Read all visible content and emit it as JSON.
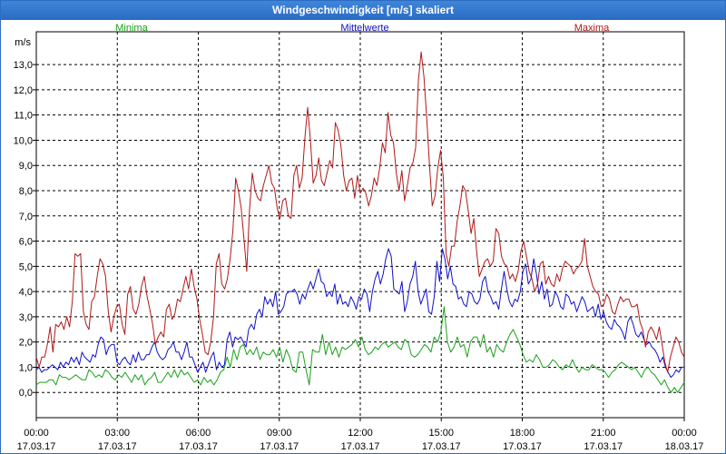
{
  "window": {
    "title": "Windgeschwindigkeit [m/s] skaliert"
  },
  "chart_data": {
    "type": "line",
    "title": "Windgeschwindigkeit [m/s] skaliert",
    "ylabel": "m/s",
    "xlabel": "",
    "ylim": [
      -1,
      14.3
    ],
    "xlim": [
      0,
      24
    ],
    "grid": true,
    "x_ticks": [
      {
        "time": "00:00",
        "date": "17.03.17"
      },
      {
        "time": "03:00",
        "date": "17.03.17"
      },
      {
        "time": "06:00",
        "date": "17.03.17"
      },
      {
        "time": "09:00",
        "date": "17.03.17"
      },
      {
        "time": "12:00",
        "date": "17.03.17"
      },
      {
        "time": "15:00",
        "date": "17.03.17"
      },
      {
        "time": "18:00",
        "date": "17.03.17"
      },
      {
        "time": "21:00",
        "date": "17.03.17"
      },
      {
        "time": "00:00",
        "date": "18.03.17"
      }
    ],
    "y_ticks": [
      "0,0",
      "1,0",
      "2,0",
      "3,0",
      "4,0",
      "5,0",
      "6,0",
      "7,0",
      "8,0",
      "9,0",
      "10,0",
      "11,0",
      "12,0",
      "13,0"
    ],
    "series": [
      {
        "name": "Minima",
        "color": "#1aa01a",
        "values": [
          0.3,
          0.4,
          0.4,
          0.4,
          0.5,
          0.5,
          0.3,
          0.7,
          0.6,
          0.6,
          0.5,
          0.6,
          0.7,
          0.6,
          0.5,
          0.5,
          0.9,
          0.8,
          0.6,
          0.7,
          0.6,
          0.9,
          0.8,
          0.6,
          0.5,
          0.7,
          0.6,
          0.8,
          0.6,
          0.4,
          0.7,
          0.5,
          0.7,
          0.3,
          0.5,
          0.6,
          0.8,
          0.4,
          0.4,
          0.6,
          0.8,
          0.6,
          0.9,
          0.6,
          0.9,
          0.7,
          0.8,
          0.6,
          0.4,
          0.5,
          0.3,
          0.6,
          0.4,
          0.5,
          0.3,
          0.5,
          0.8,
          0.9,
          1.4,
          1.0,
          1.7,
          1.3,
          1.8,
          1.9,
          1.5,
          1.7,
          1.5,
          1.8,
          1.3,
          1.6,
          1.5,
          1.5,
          1.7,
          1.4,
          1.8,
          1.2,
          1.7,
          1.4,
          0.9,
          0.8,
          1.6,
          1.6,
          0.9,
          0.3,
          1.7,
          1.6,
          1.6,
          2.3,
          1.5,
          2.0,
          1.5,
          1.8,
          1.4,
          1.8,
          1.7,
          1.8,
          1.9,
          2.1,
          1.8,
          2.2,
          1.7,
          1.5,
          1.6,
          1.8,
          1.7,
          1.9,
          2.0,
          1.8,
          1.9,
          2.0,
          1.8,
          1.7,
          2.1,
          2.0,
          1.5,
          1.4,
          1.5,
          1.7,
          1.9,
          1.8,
          1.6,
          2.2,
          2.0,
          2.4,
          3.4,
          2.0,
          1.6,
          1.8,
          2.2,
          1.8,
          1.9,
          1.4,
          2.0,
          2.2,
          2.2,
          1.8,
          2.3,
          1.6,
          1.8,
          1.4,
          1.9,
          1.7,
          1.6,
          2.0,
          2.3,
          2.5,
          2.2,
          1.9,
          1.5,
          1.2,
          1.3,
          1.2,
          1.5,
          1.3,
          1.0,
          1.0,
          1.1,
          1.3,
          1.2,
          1.0,
          0.9,
          1.1,
          1.0,
          1.3,
          1.0,
          0.8,
          1.0,
          0.9,
          0.9,
          1.1,
          1.0,
          0.9,
          0.9,
          0.8,
          0.6,
          0.8,
          0.9,
          1.1,
          1.2,
          1.1,
          1.0,
          0.9,
          1.0,
          0.8,
          0.6,
          0.9,
          1.0,
          0.8,
          0.7,
          0.5,
          0.3,
          0.5,
          0.2,
          0.0,
          0.2,
          0.0,
          0.2,
          0.4
        ]
      },
      {
        "name": "Mittelwerte",
        "color": "#1010c8",
        "values": [
          0.9,
          1.0,
          0.8,
          0.9,
          0.9,
          1.0,
          1.1,
          1.0,
          0.9,
          1.2,
          1.0,
          1.2,
          1.1,
          1.4,
          1.2,
          1.4,
          1.1,
          1.6,
          1.4,
          1.3,
          1.2,
          1.5,
          1.4,
          1.9,
          2.2,
          2.1,
          1.5,
          1.8,
          1.9,
          1.9,
          1.2,
          1.1,
          1.3,
          1.4,
          1.2,
          1.1,
          1.5,
          1.2,
          1.6,
          1.3,
          1.3,
          1.5,
          1.5,
          1.8,
          2.0,
          1.6,
          1.4,
          1.3,
          1.4,
          1.7,
          1.8,
          2.0,
          1.6,
          1.6,
          1.3,
          1.6,
          2.0,
          1.4,
          1.4,
          1.1,
          0.8,
          1.0,
          1.2,
          0.8,
          1.1,
          1.4,
          1.6,
          0.9,
          1.2,
          1.0,
          1.1,
          2.1,
          2.4,
          1.8,
          2.2,
          2.1,
          2.2,
          2.0,
          1.8,
          2.5,
          2.7,
          2.5,
          3.1,
          3.3,
          3.0,
          3.8,
          3.5,
          3.7,
          3.4,
          4.0,
          3.1,
          3.2,
          3.4,
          3.9,
          4.0,
          4.0,
          4.1,
          3.9,
          3.5,
          3.9,
          3.7,
          4.1,
          4.4,
          4.1,
          4.5,
          4.9,
          4.4,
          4.3,
          3.8,
          4.0,
          3.8,
          4.3,
          3.5,
          3.9,
          3.5,
          3.6,
          3.4,
          3.8,
          3.6,
          3.3,
          3.8,
          3.7,
          4.1,
          3.9,
          3.2,
          4.0,
          4.5,
          4.8,
          4.3,
          4.7,
          5.3,
          5.7,
          5.4,
          4.1,
          4.0,
          3.9,
          4.4,
          3.2,
          3.6,
          4.3,
          4.6,
          5.2,
          4.0,
          3.5,
          3.8,
          4.1,
          3.2,
          3.1,
          3.8,
          5.2,
          4.4,
          5.7,
          5.3,
          4.5,
          5.0,
          4.3,
          4.2,
          3.7,
          3.8,
          3.5,
          3.4,
          4.0,
          3.9,
          3.6,
          3.5,
          3.7,
          4.4,
          4.6,
          4.0,
          3.8,
          3.5,
          3.6,
          3.3,
          4.1,
          4.8,
          4.1,
          3.6,
          3.4,
          3.7,
          3.6,
          4.0,
          4.8,
          5.1,
          4.3,
          4.5,
          5.3,
          4.7,
          3.9,
          4.4,
          3.7,
          4.1,
          3.4,
          3.5,
          4.0,
          3.8,
          3.4,
          3.3,
          3.9,
          3.8,
          3.5,
          3.6,
          3.2,
          3.5,
          3.8,
          3.6,
          3.2,
          3.3,
          3.4,
          3.0,
          3.5,
          2.9,
          3.2,
          2.8,
          2.6,
          2.5,
          2.9,
          2.7,
          2.6,
          2.4,
          2.1,
          2.8,
          3.0,
          2.7,
          2.3,
          2.2,
          2.4,
          2.1,
          1.9,
          2.0,
          1.8,
          1.7,
          1.5,
          1.2,
          1.4,
          1.0,
          0.8,
          0.6,
          0.7,
          0.9,
          0.8,
          1.0,
          1.0
        ]
      },
      {
        "name": "Maxima",
        "color": "#b01818",
        "values": [
          1.4,
          1.0,
          1.4,
          1.4,
          1.9,
          2.6,
          1.6,
          2.7,
          2.6,
          2.8,
          2.5,
          3.0,
          2.6,
          3.6,
          5.5,
          5.4,
          5.5,
          3.2,
          2.7,
          2.5,
          3.6,
          3.8,
          4.6,
          5.3,
          5.1,
          4.6,
          3.2,
          2.4,
          3.0,
          3.4,
          3.5,
          2.7,
          2.3,
          3.9,
          4.2,
          3.3,
          3.1,
          3.5,
          4.2,
          4.6,
          3.8,
          3.3,
          2.7,
          1.9,
          2.2,
          2.4,
          2.2,
          3.3,
          3.5,
          2.9,
          3.1,
          3.7,
          3.6,
          4.1,
          4.6,
          4.1,
          4.9,
          4.2,
          3.7,
          2.9,
          2.3,
          1.6,
          1.5,
          2.0,
          3.0,
          5.1,
          5.5,
          4.3,
          4.1,
          4.5,
          5.3,
          6.4,
          8.5,
          8.0,
          7.3,
          6.1,
          4.8,
          7.2,
          8.7,
          8.0,
          7.7,
          7.6,
          8.2,
          8.6,
          9.0,
          8.3,
          8.1,
          7.3,
          6.9,
          7.6,
          7.7,
          7.0,
          6.9,
          8.6,
          9.0,
          8.1,
          8.5,
          10.1,
          11.3,
          10.0,
          8.3,
          8.6,
          9.3,
          8.4,
          8.2,
          8.7,
          9.2,
          8.9,
          10.7,
          10.4,
          9.8,
          8.6,
          8.0,
          8.4,
          8.5,
          7.7,
          8.6,
          7.9,
          8.1,
          7.9,
          7.4,
          7.8,
          8.5,
          8.2,
          8.9,
          9.9,
          9.5,
          11.1,
          10.2,
          9.9,
          8.7,
          8.0,
          8.8,
          7.6,
          8.2,
          8.9,
          9.1,
          9.7,
          12.4,
          13.5,
          12.5,
          10.9,
          9.0,
          7.4,
          7.8,
          8.9,
          9.6,
          8.5,
          5.5,
          5.0,
          5.8,
          5.8,
          6.8,
          7.4,
          8.2,
          8.0,
          7.2,
          6.3,
          6.9,
          5.6,
          4.6,
          4.9,
          5.2,
          5.3,
          5.0,
          5.2,
          6.5,
          6.3,
          5.4,
          5.1,
          5.0,
          4.5,
          4.7,
          4.4,
          4.8,
          5.6,
          6.0,
          5.4,
          4.8,
          4.5,
          4.0,
          4.3,
          5.1,
          5.2,
          4.3,
          4.6,
          4.3,
          4.2,
          4.7,
          4.4,
          4.9,
          5.2,
          5.1,
          5.0,
          4.7,
          4.9,
          5.0,
          5.2,
          6.1,
          5.0,
          4.6,
          4.2,
          4.0,
          3.9,
          3.4,
          3.5,
          3.9,
          3.7,
          3.2,
          3.1,
          3.5,
          3.8,
          3.6,
          3.7,
          3.7,
          3.4,
          3.4,
          3.5,
          2.8,
          2.5,
          1.8,
          2.4,
          2.6,
          2.4,
          2.1,
          2.6,
          1.9,
          1.2,
          0.8,
          1.4,
          1.8,
          2.2,
          2.0,
          1.6,
          1.4
        ]
      }
    ]
  }
}
